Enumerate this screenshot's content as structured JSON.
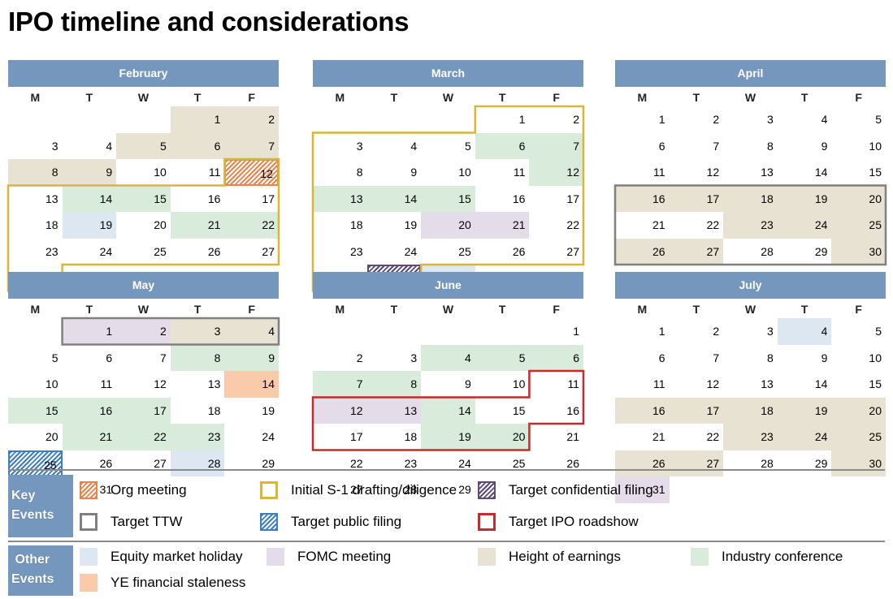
{
  "title": "IPO timeline and considerations",
  "weekday_labels": [
    "M",
    "T",
    "W",
    "T",
    "F"
  ],
  "colors": {
    "header": "#7596bd",
    "org_meeting": "#e9834a",
    "initial_s1": "#d8b63a",
    "target_confidential": "#5c4a78",
    "target_ttw": "#808080",
    "target_public": "#3e7cc4",
    "target_roadshow": "#c42b2b",
    "equity_holiday": "#dde7f2",
    "fomc": "#e4dde9",
    "earnings": "#e7e2d1",
    "industry": "#d9ebda",
    "ye_staleness": "#f9cbab"
  },
  "months": [
    {
      "name": "February",
      "first_col": 3,
      "days": 28,
      "highlights": {
        "1": "earnings",
        "2": "earnings",
        "5": "earnings",
        "6": "earnings",
        "7": "earnings",
        "8": "earnings",
        "9": "earnings",
        "12": "org_meeting",
        "14": "industry",
        "15": "industry",
        "19": "equity_holiday",
        "21": "industry",
        "22": "industry"
      },
      "outlines": [
        {
          "event": "initial_s1",
          "range": [
            12,
            28
          ]
        }
      ],
      "hatched": [
        {
          "day": 12,
          "event": "org_meeting"
        }
      ]
    },
    {
      "name": "March",
      "first_col": 3,
      "days": 30,
      "highlights": {
        "6": "industry",
        "7": "industry",
        "12": "industry",
        "13": "industry",
        "14": "industry",
        "15": "industry",
        "20": "fomc",
        "21": "fomc",
        "30": "equity_holiday"
      },
      "outlines": [
        {
          "event": "initial_s1",
          "range": [
            1,
            29
          ]
        }
      ],
      "hatched": [
        {
          "day": 29,
          "event": "target_confidential"
        }
      ]
    },
    {
      "name": "April",
      "first_col": 0,
      "days": 30,
      "highlights": {
        "16": "earnings",
        "17": "earnings",
        "18": "earnings",
        "19": "earnings",
        "20": "earnings",
        "23": "earnings",
        "24": "earnings",
        "25": "earnings",
        "26": "earnings",
        "27": "earnings",
        "30": "earnings"
      },
      "outlines": [
        {
          "event": "target_ttw",
          "range": [
            16,
            30
          ]
        }
      ],
      "hatched": []
    },
    {
      "name": "May",
      "first_col": 1,
      "days": 31,
      "highlights": {
        "1": "fomc",
        "2": "fomc",
        "3": "earnings",
        "4": "earnings",
        "8": "industry",
        "9": "industry",
        "14": "ye_staleness",
        "15": "industry",
        "16": "industry",
        "17": "industry",
        "21": "industry",
        "22": "industry",
        "23": "industry",
        "28": "equity_holiday"
      },
      "outlines": [
        {
          "event": "target_ttw",
          "range": [
            1,
            4
          ]
        }
      ],
      "hatched": [
        {
          "day": 25,
          "event": "target_public"
        }
      ]
    },
    {
      "name": "June",
      "first_col": 4,
      "days": 29,
      "highlights": {
        "4": "industry",
        "5": "industry",
        "6": "industry",
        "7": "industry",
        "8": "industry",
        "12": "fomc",
        "13": "fomc",
        "14": "industry",
        "19": "industry",
        "20": "industry"
      },
      "outlines": [
        {
          "event": "target_roadshow",
          "range": [
            11,
            20
          ]
        }
      ],
      "hatched": []
    },
    {
      "name": "July",
      "first_col": 0,
      "days": 31,
      "highlights": {
        "4": "equity_holiday",
        "16": "earnings",
        "17": "earnings",
        "18": "earnings",
        "19": "earnings",
        "20": "earnings",
        "23": "earnings",
        "24": "earnings",
        "25": "earnings",
        "26": "earnings",
        "27": "earnings",
        "30": "earnings",
        "31": "fomc"
      },
      "outlines": [],
      "hatched": []
    }
  ],
  "legend": {
    "key_label": "Key Events",
    "other_label": "Other Events",
    "key_events": [
      {
        "label": "Org meeting",
        "event": "org_meeting",
        "style": "hatch"
      },
      {
        "label": "Initial S-1 drafting/diligence",
        "event": "initial_s1",
        "style": "outline"
      },
      {
        "label": "Target confidential filing",
        "event": "target_confidential",
        "style": "hatch"
      },
      {
        "label": "Target TTW",
        "event": "target_ttw",
        "style": "outline"
      },
      {
        "label": "Target public filing",
        "event": "target_public",
        "style": "hatch"
      },
      {
        "label": "Target IPO roadshow",
        "event": "target_roadshow",
        "style": "outline"
      }
    ],
    "other_events": [
      {
        "label": "Equity market holiday",
        "event": "equity_holiday"
      },
      {
        "label": "FOMC meeting",
        "event": "fomc"
      },
      {
        "label": "Height of earnings",
        "event": "earnings"
      },
      {
        "label": "Industry conference",
        "event": "industry"
      },
      {
        "label": "YE financial staleness",
        "event": "ye_staleness"
      }
    ]
  }
}
